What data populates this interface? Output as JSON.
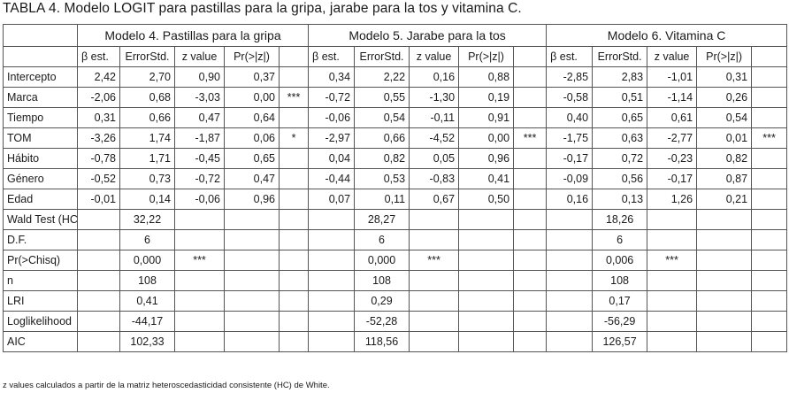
{
  "title": "TABLA 4. Modelo LOGIT para pastillas para la gripa, jarabe para la tos y vitamina C.",
  "models": [
    "Modelo 4. Pastillas para la gripa",
    "Modelo 5. Jarabe para la tos",
    "Modelo 6. Vitamina C"
  ],
  "subheaders": [
    "β est.",
    "ErrorStd.",
    "z value",
    "Pr(>|z|)"
  ],
  "coef_rows": [
    {
      "label": "Intercepto",
      "m4": [
        "2,42",
        "2,70",
        "0,90",
        "0,37",
        ""
      ],
      "m5": [
        "0,34",
        "2,22",
        "0,16",
        "0,88",
        ""
      ],
      "m6": [
        "-2,85",
        "2,83",
        "-1,01",
        "0,31",
        ""
      ]
    },
    {
      "label": "Marca",
      "m4": [
        "-2,06",
        "0,68",
        "-3,03",
        "0,00",
        "***"
      ],
      "m5": [
        "-0,72",
        "0,55",
        "-1,30",
        "0,19",
        ""
      ],
      "m6": [
        "-0,58",
        "0,51",
        "-1,14",
        "0,26",
        ""
      ]
    },
    {
      "label": "Tiempo",
      "m4": [
        "0,31",
        "0,66",
        "0,47",
        "0,64",
        ""
      ],
      "m5": [
        "-0,06",
        "0,54",
        "-0,11",
        "0,91",
        ""
      ],
      "m6": [
        "0,40",
        "0,65",
        "0,61",
        "0,54",
        ""
      ]
    },
    {
      "label": "TOM",
      "m4": [
        "-3,26",
        "1,74",
        "-1,87",
        "0,06",
        "*"
      ],
      "m5": [
        "-2,97",
        "0,66",
        "-4,52",
        "0,00",
        "***"
      ],
      "m6": [
        "-1,75",
        "0,63",
        "-2,77",
        "0,01",
        "***"
      ]
    },
    {
      "label": "Hábito",
      "m4": [
        "-0,78",
        "1,71",
        "-0,45",
        "0,65",
        ""
      ],
      "m5": [
        "0,04",
        "0,82",
        "0,05",
        "0,96",
        ""
      ],
      "m6": [
        "-0,17",
        "0,72",
        "-0,23",
        "0,82",
        ""
      ]
    },
    {
      "label": "Género",
      "m4": [
        "-0,52",
        "0,73",
        "-0,72",
        "0,47",
        ""
      ],
      "m5": [
        "-0,44",
        "0,53",
        "-0,83",
        "0,41",
        ""
      ],
      "m6": [
        "-0,09",
        "0,56",
        "-0,17",
        "0,87",
        ""
      ]
    },
    {
      "label": "Edad",
      "m4": [
        "-0,01",
        "0,14",
        "-0,06",
        "0,96",
        ""
      ],
      "m5": [
        "0,07",
        "0,11",
        "0,67",
        "0,50",
        ""
      ],
      "m6": [
        "0,16",
        "0,13",
        "1,26",
        "0,21",
        ""
      ]
    }
  ],
  "stat_rows": [
    {
      "label": "Wald Test (HC) (Chisq)",
      "values": [
        "32,22",
        "28,27",
        "18,26"
      ],
      "sig": [
        "",
        "",
        ""
      ]
    },
    {
      "label": "D.F.",
      "values": [
        "6",
        "6",
        "6"
      ],
      "sig": [
        "",
        "",
        ""
      ]
    },
    {
      "label": "Pr(>Chisq)",
      "values": [
        "0,000",
        "0,000",
        "0,006"
      ],
      "sig": [
        "***",
        "***",
        "***"
      ]
    },
    {
      "label": "n",
      "values": [
        "108",
        "108",
        "108"
      ],
      "sig": [
        "",
        "",
        ""
      ]
    },
    {
      "label": "LRI",
      "values": [
        "0,41",
        "0,29",
        "0,17"
      ],
      "sig": [
        "",
        "",
        ""
      ]
    },
    {
      "label": "Loglikelihood",
      "values": [
        "-44,17",
        "-52,28",
        "-56,29"
      ],
      "sig": [
        "",
        "",
        ""
      ]
    },
    {
      "label": "AIC",
      "values": [
        "102,33",
        "118,56",
        "126,57"
      ],
      "sig": [
        "",
        "",
        ""
      ]
    }
  ],
  "footnote": "z values calculados a partir de la matriz heteroscedasticidad consistente (HC) de White."
}
